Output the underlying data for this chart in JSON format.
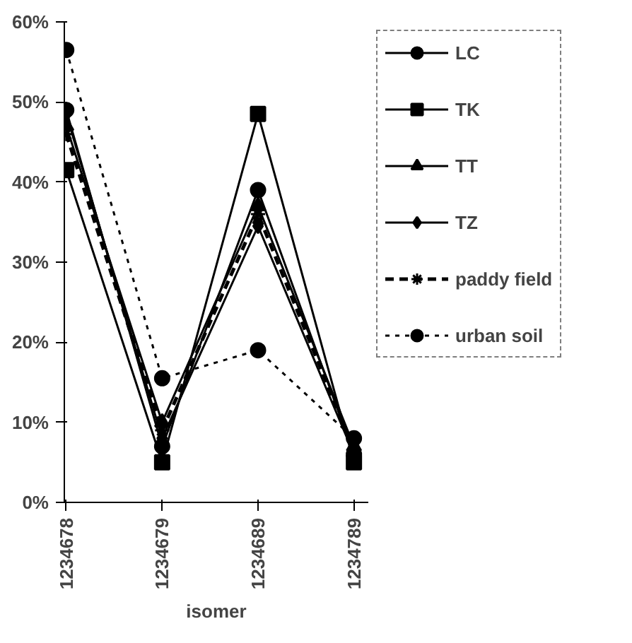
{
  "chart_data": {
    "type": "line",
    "xlabel": "isomer",
    "categories": [
      "1234678",
      "1234679",
      "1234689",
      "1234789"
    ],
    "ylim": [
      0,
      60
    ],
    "yticks": [
      {
        "value": 0,
        "label": "0%"
      },
      {
        "value": 10,
        "label": "10%"
      },
      {
        "value": 20,
        "label": "20%"
      },
      {
        "value": 30,
        "label": "30%"
      },
      {
        "value": 40,
        "label": "40%"
      },
      {
        "value": 50,
        "label": "50%"
      },
      {
        "value": 60,
        "label": "60%"
      }
    ],
    "grid": false,
    "legend": "right",
    "line_style": "solid",
    "series": [
      {
        "name": "LC",
        "color": "#000000",
        "marker": "circle",
        "values": [
          49,
          7,
          39,
          6
        ]
      },
      {
        "name": "TK",
        "color": "#000000",
        "marker": "square",
        "values": [
          41.5,
          5,
          48.5,
          5
        ]
      },
      {
        "name": "TT",
        "color": "#000000",
        "marker": "triangle",
        "values": [
          47,
          10,
          37,
          7
        ]
      },
      {
        "name": "TZ",
        "color": "#000000",
        "marker": "diamond",
        "values": [
          48.5,
          8,
          34.5,
          6
        ]
      },
      {
        "name": "paddy field",
        "color": "#000000",
        "marker": "cross",
        "line_style": "dashed",
        "values": [
          46,
          9,
          36,
          6.5
        ]
      },
      {
        "name": "urban soil",
        "color": "#000000",
        "marker": "circle",
        "line_style": "dotted",
        "values": [
          56.5,
          15.5,
          19,
          8
        ]
      }
    ]
  }
}
